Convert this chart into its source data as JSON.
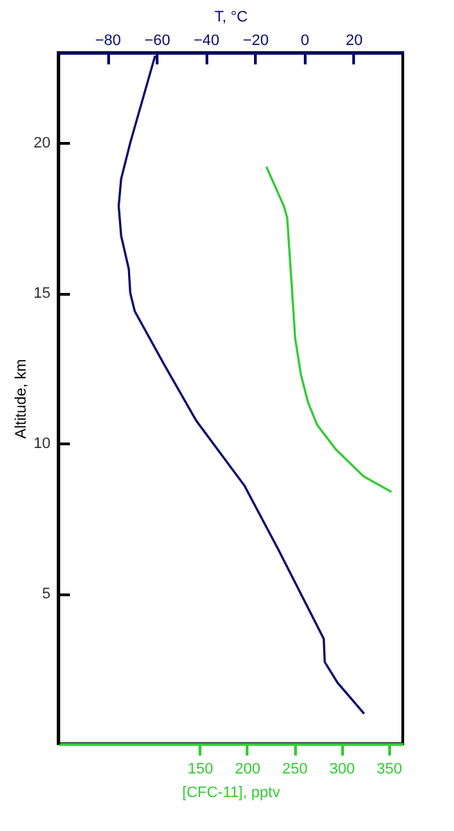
{
  "chart_data": {
    "type": "line",
    "xlabel": "[CFC-11], pptv",
    "x2label": "T, °C",
    "ylabel": "Altitude, km",
    "xlim": [
      0,
      365
    ],
    "xticks": [
      150,
      200,
      250,
      300,
      350
    ],
    "x2lim": [
      -100,
      40
    ],
    "x2ticks": [
      -80,
      -60,
      -40,
      -20,
      0,
      20
    ],
    "ylim": [
      0,
      23
    ],
    "yticks": [
      5,
      10,
      15,
      20
    ],
    "series": [
      {
        "color": "#0a0a6e",
        "axis": "x2",
        "x": [
          -60.6,
          -70.7,
          -74.4,
          -75.4,
          -74.4,
          -71.3,
          -70.7,
          -68.9,
          -56.8,
          -43.9,
          -24.4,
          -10.6,
          7.9,
          8.3,
          13.5,
          24.3
        ],
        "values": [
          22.9,
          20,
          18.8,
          17.9,
          16.9,
          15.8,
          15,
          14.4,
          12.6,
          10.75,
          8.6,
          6.47,
          3.49,
          2.72,
          2.03,
          1
        ]
      },
      {
        "color": "#33cc33",
        "x": [
          220.6,
          239,
          242.6,
          247.5,
          251,
          257,
          264.7,
          274.5,
          294,
          323.5,
          353
        ],
        "values": [
          19.2,
          17.9,
          17.5,
          15.2,
          13.5,
          12.3,
          11.36,
          10.6,
          9.8,
          8.9,
          8.38
        ]
      }
    ]
  }
}
